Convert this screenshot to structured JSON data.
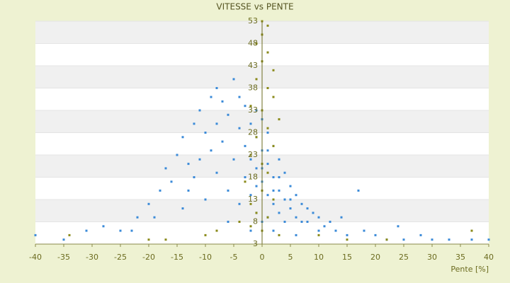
{
  "chart_data": {
    "type": "scatter",
    "title": "VITESSE vs PENTE",
    "x_label": "Pente [%]",
    "xlim": [
      -40,
      40
    ],
    "xticks": [
      -40,
      -35,
      -30,
      -25,
      -20,
      -15,
      -10,
      -5,
      0,
      5,
      10,
      15,
      20,
      25,
      30,
      35,
      40
    ],
    "ylim": [
      3,
      53
    ],
    "yticks": [
      3,
      8,
      13,
      18,
      23,
      28,
      33,
      38,
      43,
      48,
      53
    ],
    "series": [
      {
        "color": "#3a8ad8",
        "x": [
          -40,
          -35,
          -31,
          -28,
          -25,
          -22,
          -20,
          -18,
          -17,
          -16,
          -15,
          -14,
          -13,
          -12,
          -12,
          -11,
          -10,
          -10,
          -9,
          -9,
          -8,
          -8,
          -7,
          -7,
          -6,
          -6,
          -5,
          -5,
          -4,
          -4,
          -4,
          -3,
          -3,
          -3,
          -2,
          -2,
          -2,
          -1,
          -1,
          -1,
          -1,
          0,
          0,
          0,
          0,
          1,
          1,
          1,
          1,
          2,
          2,
          2,
          3,
          3,
          3,
          4,
          4,
          4,
          5,
          5,
          6,
          6,
          7,
          7,
          8,
          9,
          10,
          11,
          12,
          13,
          14,
          15,
          17,
          18,
          20,
          22,
          24,
          25,
          28,
          30,
          33,
          37,
          40,
          -19,
          -23,
          -14,
          -6,
          -2,
          2,
          6,
          10,
          3,
          1,
          -1,
          0,
          2,
          5,
          8,
          -8,
          -11,
          -13
        ],
        "y": [
          5,
          4,
          6,
          7,
          6,
          9,
          12,
          15,
          20,
          17,
          23,
          27,
          21,
          30,
          18,
          33,
          28,
          13,
          36,
          24,
          38,
          19,
          35,
          26,
          32,
          15,
          40,
          22,
          36,
          29,
          12,
          34,
          25,
          18,
          30,
          22,
          14,
          33,
          27,
          20,
          10,
          31,
          24,
          17,
          8,
          28,
          21,
          14,
          9,
          25,
          18,
          12,
          22,
          15,
          10,
          19,
          13,
          8,
          16,
          11,
          14,
          9,
          12,
          8,
          11,
          10,
          9,
          7,
          8,
          6,
          9,
          5,
          15,
          6,
          5,
          4,
          7,
          4,
          5,
          4,
          4,
          4,
          4,
          9,
          6,
          11,
          8,
          6,
          6,
          5,
          6,
          18,
          24,
          16,
          20,
          15,
          13,
          8,
          30,
          22,
          15
        ]
      },
      {
        "color": "#8a8a1a",
        "x": [
          0,
          1,
          0,
          -1,
          1,
          0,
          2,
          -1,
          1,
          2,
          -2,
          0,
          3,
          1,
          -1,
          2,
          -2,
          0,
          1,
          -3,
          0,
          2,
          -2,
          -1,
          1,
          -4,
          -2,
          0,
          3,
          -20,
          -17,
          -10,
          -8,
          10,
          15,
          22,
          -34,
          37
        ],
        "y": [
          53,
          52,
          50,
          48,
          46,
          44,
          42,
          40,
          38,
          36,
          34,
          33,
          31,
          29,
          27,
          25,
          23,
          21,
          19,
          17,
          15,
          13,
          12,
          10,
          9,
          8,
          7,
          6,
          5,
          4,
          4,
          5,
          6,
          5,
          4,
          4,
          5,
          6
        ]
      }
    ]
  }
}
